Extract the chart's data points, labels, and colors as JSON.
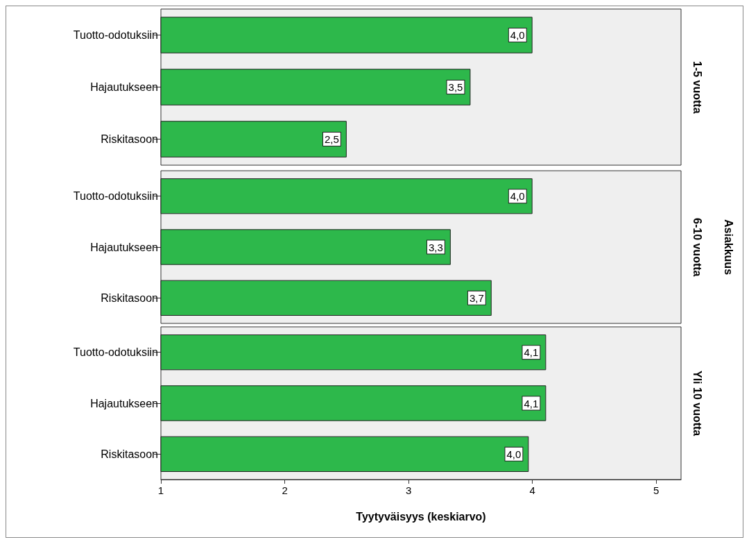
{
  "chart_data": [
    {
      "type": "bar",
      "orientation": "horizontal",
      "y2label": "1-5 vuotta",
      "categories": [
        "Tuotto-odotuksiin",
        "Hajautukseen",
        "Riskitasoon"
      ],
      "values": [
        4.0,
        3.5,
        2.5
      ],
      "value_labels": [
        "4,0",
        "3,5",
        "2,5"
      ],
      "color": "#2db84b",
      "xlim": [
        1,
        5.2
      ],
      "xticks": [
        1,
        2,
        3,
        4,
        5
      ],
      "tick_labels": "y",
      "grid": false
    },
    {
      "type": "bar",
      "orientation": "horizontal",
      "y2label": "6-10 vuotta",
      "annotations": [
        "Asiakkuus"
      ],
      "categories": [
        "Tuotto-odotuksiin",
        "Hajautukseen",
        "Riskitasoon"
      ],
      "values": [
        4.0,
        3.34,
        3.67
      ],
      "value_labels": [
        "4,0",
        "3,3",
        "3,7"
      ],
      "color": "#2db84b",
      "xlim": [
        1,
        5.2
      ],
      "xticks": [
        1,
        2,
        3,
        4,
        5
      ],
      "tick_labels": "y",
      "grid": false
    },
    {
      "type": "bar",
      "orientation": "horizontal",
      "y2label": "Yli 10 vuotta",
      "xlabel": "Tyytyväisyys (keskiarvo)",
      "categories": [
        "Tuotto-odotuksiin",
        "Hajautukseen",
        "Riskitasoon"
      ],
      "values": [
        4.11,
        4.11,
        3.97
      ],
      "value_labels": [
        "4,1",
        "4,1",
        "4,0"
      ],
      "color": "#2db84b",
      "xlim": [
        1,
        5.2
      ],
      "xticks": [
        1,
        2,
        3,
        4,
        5
      ],
      "grid": false
    }
  ]
}
